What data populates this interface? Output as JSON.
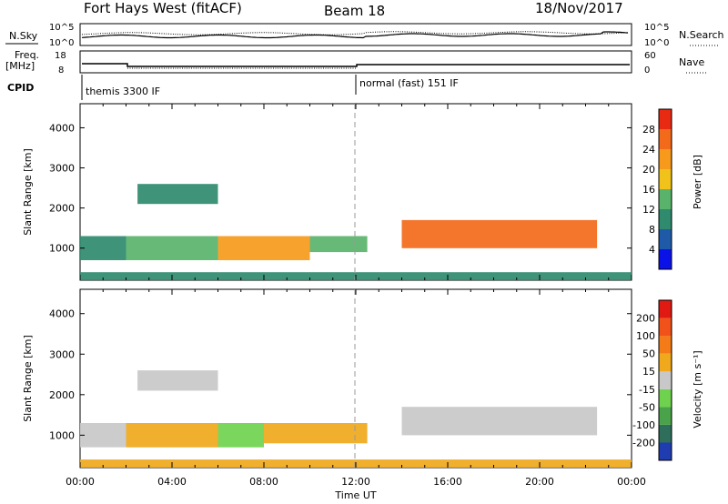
{
  "header": {
    "station": "Fort Hays West (fitACF)",
    "beam": "Beam 18",
    "date": "18/Nov/2017"
  },
  "panel_labels": {
    "nsky": "N.Sky",
    "nsearch": "N.Search",
    "freq": "Freq.",
    "freq_unit": "[MHz]",
    "nave": "Nave",
    "cpid": "CPID"
  },
  "noise_ticks": {
    "left_top": "10^5",
    "left_bottom": "10^0",
    "right_top": "10^5",
    "right_bottom": "10^0"
  },
  "freq_ticks": {
    "left_top": "18",
    "left_bottom": "8",
    "right_top": "60",
    "right_bottom": "0"
  },
  "cpid_segments": [
    {
      "label": "themis 3300 IF",
      "start_hour": 0
    },
    {
      "label": "normal (fast) 151 IF",
      "start_hour": 12
    }
  ],
  "chart_data": [
    {
      "type": "heatmap",
      "name": "power",
      "ylabel": "Slant Range [km]",
      "xlabel": "",
      "xlim": [
        0,
        24
      ],
      "ylim": [
        200,
        4600
      ],
      "yticks": [
        1000,
        2000,
        3000,
        4000
      ],
      "colorbar": {
        "label": "Power [dB]",
        "ticks": [
          4,
          8,
          12,
          16,
          20,
          24,
          28
        ],
        "range": [
          0,
          32
        ],
        "colors": [
          "#0b12e8",
          "#1f5aa8",
          "#2f8a6e",
          "#5ab36b",
          "#f0c21a",
          "#f79a1c",
          "#f26a1a",
          "#e82a12"
        ]
      },
      "bands": [
        {
          "from_hour": 0.0,
          "to_hour": 2.0,
          "range_low": 700,
          "range_high": 1300,
          "value": 10
        },
        {
          "from_hour": 2.0,
          "to_hour": 6.0,
          "range_low": 700,
          "range_high": 1300,
          "value": 14
        },
        {
          "from_hour": 6.0,
          "to_hour": 10.0,
          "range_low": 700,
          "range_high": 1300,
          "value": 20
        },
        {
          "from_hour": 10.0,
          "to_hour": 12.5,
          "range_low": 900,
          "range_high": 1300,
          "value": 12
        },
        {
          "from_hour": 14.0,
          "to_hour": 22.5,
          "range_low": 1000,
          "range_high": 1700,
          "value": 24
        },
        {
          "from_hour": 2.5,
          "to_hour": 6.0,
          "range_low": 2100,
          "range_high": 2600,
          "value": 8
        },
        {
          "from_hour": 0.0,
          "to_hour": 24.0,
          "range_low": 200,
          "range_high": 400,
          "value": 10
        }
      ]
    },
    {
      "type": "heatmap",
      "name": "velocity",
      "ylabel": "Slant Range [km]",
      "xlabel": "Time UT",
      "xlim": [
        0,
        24
      ],
      "ylim": [
        200,
        4600
      ],
      "yticks": [
        1000,
        2000,
        3000,
        4000
      ],
      "xticks": [
        "00:00",
        "04:00",
        "08:00",
        "12:00",
        "16:00",
        "20:00",
        "00:00"
      ],
      "colorbar": {
        "label": "Velocity [m s⁻¹]",
        "ticks": [
          200,
          100,
          50,
          15,
          -15,
          -50,
          -100,
          -200
        ],
        "colors": [
          "#1f3cb0",
          "#2e6e5a",
          "#4aa34a",
          "#6fd24e",
          "#c8c8c8",
          "#f0a81c",
          "#f57a18",
          "#f0521a",
          "#e01a12"
        ]
      },
      "bands": [
        {
          "from_hour": 0.0,
          "to_hour": 2.0,
          "range_low": 700,
          "range_high": 1300,
          "value": -15
        },
        {
          "from_hour": 2.0,
          "to_hour": 6.0,
          "range_low": 700,
          "range_high": 1300,
          "value": -50
        },
        {
          "from_hour": 6.0,
          "to_hour": 8.0,
          "range_low": 700,
          "range_high": 1300,
          "value": 15
        },
        {
          "from_hour": 8.0,
          "to_hour": 12.5,
          "range_low": 800,
          "range_high": 1300,
          "value": -50
        },
        {
          "from_hour": 14.0,
          "to_hour": 22.5,
          "range_low": 1000,
          "range_high": 1700,
          "value": 0
        },
        {
          "from_hour": 2.5,
          "to_hour": 6.0,
          "range_low": 2100,
          "range_high": 2600,
          "value": 0
        },
        {
          "from_hour": 0.0,
          "to_hour": 24.0,
          "range_low": 200,
          "range_high": 400,
          "value": -50
        }
      ]
    }
  ]
}
